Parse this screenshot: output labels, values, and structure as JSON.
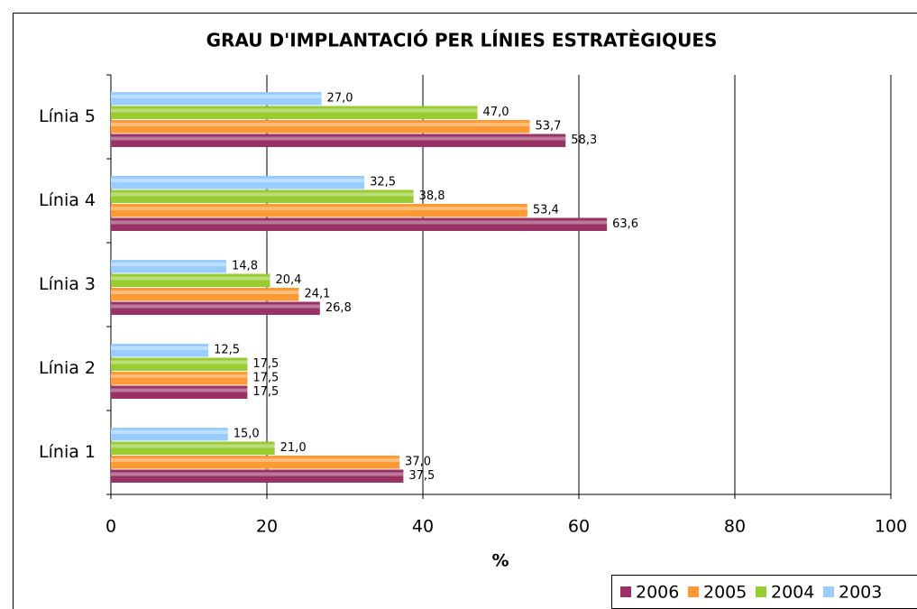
{
  "chart_data": {
    "type": "hbar",
    "title": "GRAU D'IMPLANTACIÓ PER LÍNIES ESTRATÈGIQUES",
    "x_label": "%",
    "categories": [
      "Línia 1",
      "Línia 2",
      "Línia 3",
      "Línia 4",
      "Línia 5"
    ],
    "series": [
      {
        "name": "2006",
        "color": "#993366",
        "values": [
          37.5,
          17.5,
          26.8,
          63.6,
          58.3
        ],
        "value_labels": [
          "37,5",
          "17,5",
          "26,8",
          "63,6",
          "58,3"
        ]
      },
      {
        "name": "2005",
        "color": "#ff9933",
        "values": [
          37.0,
          17.5,
          24.1,
          53.4,
          53.7
        ],
        "value_labels": [
          "37,0",
          "17,5",
          "24,1",
          "53,4",
          "53,7"
        ]
      },
      {
        "name": "2004",
        "color": "#99cc33",
        "values": [
          21.0,
          17.5,
          20.4,
          38.8,
          47.0
        ],
        "value_labels": [
          "21,0",
          "17,5",
          "20,4",
          "38,8",
          "47,0"
        ]
      },
      {
        "name": "2003",
        "color": "#99ccff",
        "values": [
          15.0,
          12.5,
          14.8,
          32.5,
          27.0
        ],
        "value_labels": [
          "15,0",
          "12,5",
          "14,8",
          "32,5",
          "27,0"
        ]
      }
    ],
    "xlim": [
      0,
      100
    ],
    "xticks": [
      0,
      20,
      40,
      60,
      80,
      100
    ],
    "grid": true,
    "legend": "bottom-right"
  }
}
